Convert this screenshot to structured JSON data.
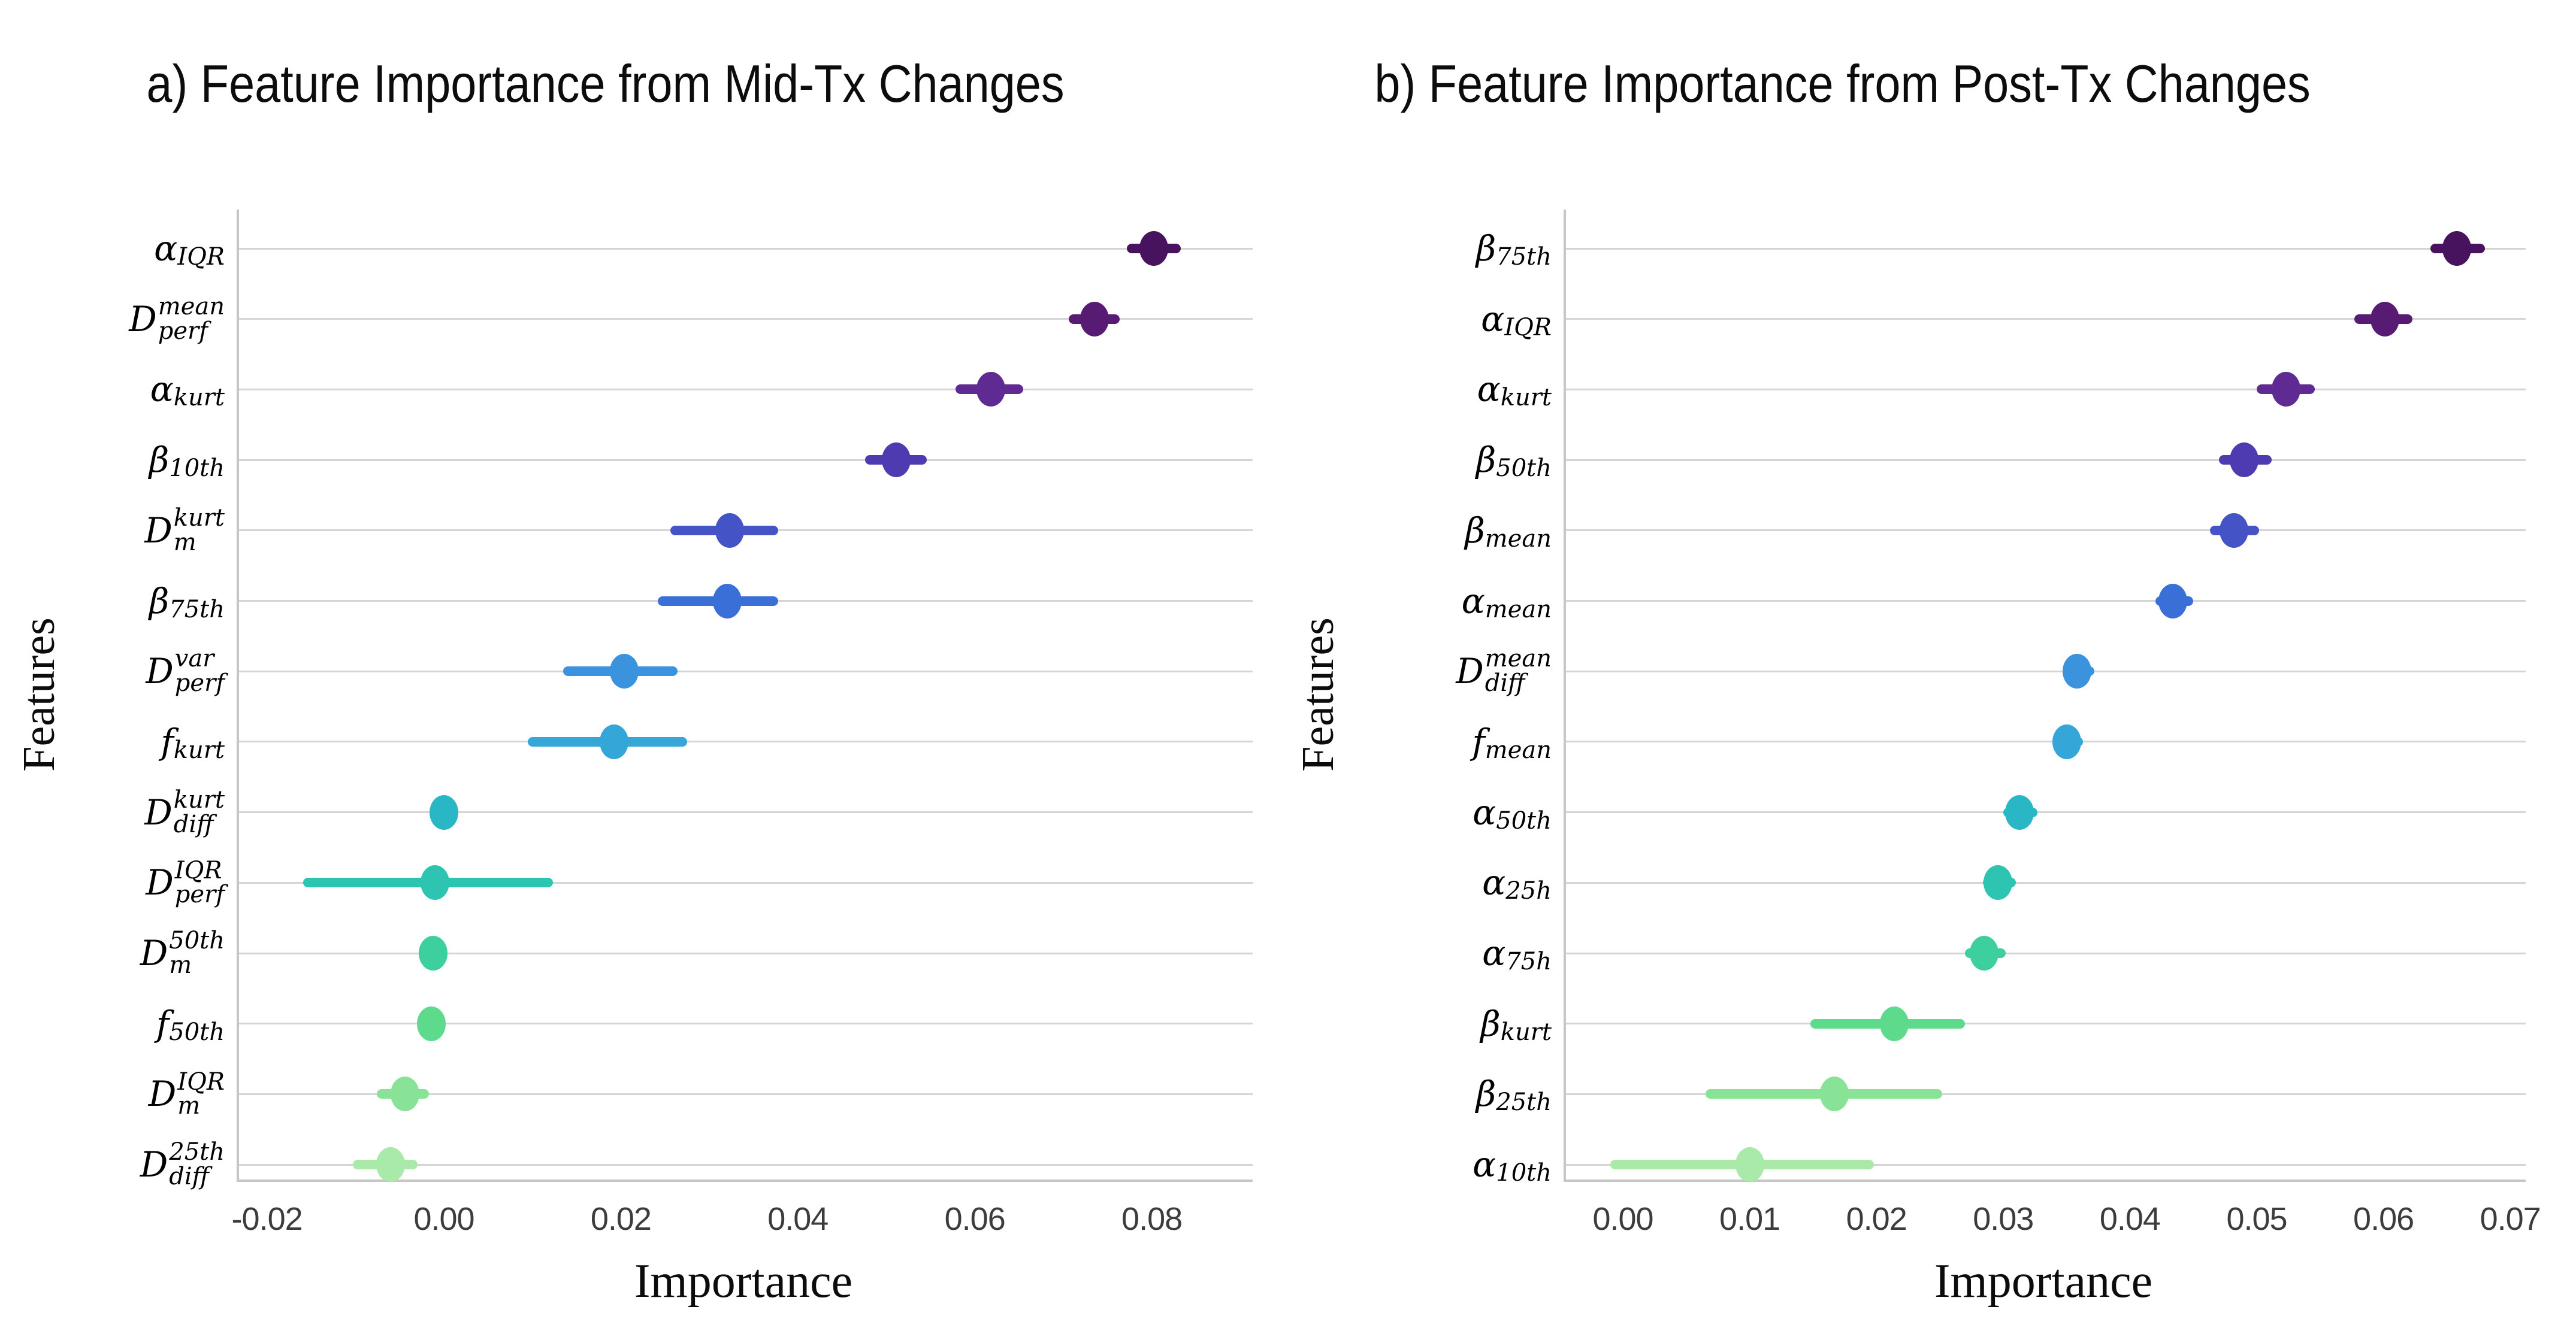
{
  "chart_data": [
    {
      "type": "scatter",
      "title": "a) Feature Importance from Mid-Tx Changes",
      "xlabel": "Importance",
      "ylabel": "Features",
      "legend": "none",
      "grid": "horizontal",
      "xlim": [
        -0.0232,
        0.0914
      ],
      "x_ticks": [
        {
          "label": "-0.02",
          "value": -0.02
        },
        {
          "label": "0.00",
          "value": 0.0
        },
        {
          "label": "0.02",
          "value": 0.02
        },
        {
          "label": "0.04",
          "value": 0.04
        },
        {
          "label": "0.06",
          "value": 0.06
        },
        {
          "label": "0.08",
          "value": 0.08
        }
      ],
      "features": [
        {
          "base": "α",
          "sub": "IQR",
          "value": 0.0802,
          "lo": 0.0772,
          "hi": 0.0833,
          "color": "#47125e"
        },
        {
          "base": "D",
          "sup": "mean",
          "sub": "perf",
          "value": 0.0735,
          "lo": 0.0706,
          "hi": 0.0764,
          "color": "#571b73"
        },
        {
          "base": "α",
          "sub": "kurt",
          "value": 0.0618,
          "lo": 0.0578,
          "hi": 0.0655,
          "color": "#5f2a92"
        },
        {
          "base": "β",
          "sub": "10th",
          "value": 0.0511,
          "lo": 0.0476,
          "hi": 0.0546,
          "color": "#4f3bb1"
        },
        {
          "base": "D",
          "sup": "kurt",
          "sub": "m",
          "value": 0.0323,
          "lo": 0.0256,
          "hi": 0.0378,
          "color": "#4454c6"
        },
        {
          "base": "β",
          "sub": "75th",
          "value": 0.032,
          "lo": 0.0242,
          "hi": 0.0378,
          "color": "#3b6fd8"
        },
        {
          "base": "D",
          "sup": "var",
          "sub": "perf",
          "value": 0.0204,
          "lo": 0.0135,
          "hi": 0.0264,
          "color": "#3b93dd"
        },
        {
          "base": "f",
          "sub": "kurt",
          "value": 0.0192,
          "lo": 0.0095,
          "hi": 0.0275,
          "color": "#34a7d8"
        },
        {
          "base": "D",
          "sup": "kurt",
          "sub": "diff",
          "value": 0.0,
          "lo": -0.0004,
          "hi": 0.0004,
          "color": "#2ab7c5"
        },
        {
          "base": "D",
          "sup": "IQR",
          "sub": "perf",
          "value": -0.001,
          "lo": -0.0159,
          "hi": 0.0123,
          "color": "#2dc4b1"
        },
        {
          "base": "D",
          "sup": "50th",
          "sub": "m",
          "value": -0.0012,
          "lo": -0.0017,
          "hi": -0.0007,
          "color": "#3dcf9d"
        },
        {
          "base": "f",
          "sub": "50th",
          "value": -0.0014,
          "lo": -0.0019,
          "hi": -0.0009,
          "color": "#5eda8c"
        },
        {
          "base": "D",
          "sup": "IQR",
          "sub": "m",
          "value": -0.0044,
          "lo": -0.0076,
          "hi": -0.0017,
          "color": "#89e396"
        },
        {
          "base": "D",
          "sup": "25th",
          "sub": "diff",
          "value": -0.006,
          "lo": -0.0103,
          "hi": -0.003,
          "color": "#a9e9a9"
        }
      ]
    },
    {
      "type": "scatter",
      "title": "b) Feature Importance from Post-Tx Changes",
      "xlabel": "Importance",
      "ylabel": "Features",
      "legend": "none",
      "grid": "horizontal",
      "xlim": [
        -0.0045,
        0.0712
      ],
      "x_ticks": [
        {
          "label": "0.00",
          "value": 0.0
        },
        {
          "label": "0.01",
          "value": 0.01
        },
        {
          "label": "0.02",
          "value": 0.02
        },
        {
          "label": "0.03",
          "value": 0.03
        },
        {
          "label": "0.04",
          "value": 0.04
        },
        {
          "label": "0.05",
          "value": 0.05
        },
        {
          "label": "0.06",
          "value": 0.06
        },
        {
          "label": "0.07",
          "value": 0.07
        }
      ],
      "features": [
        {
          "base": "β",
          "sub": "75th",
          "value": 0.0658,
          "lo": 0.0637,
          "hi": 0.068,
          "color": "#47125e"
        },
        {
          "base": "α",
          "sub": "IQR",
          "value": 0.0601,
          "lo": 0.0577,
          "hi": 0.0623,
          "color": "#571b73"
        },
        {
          "base": "α",
          "sub": "kurt",
          "value": 0.0523,
          "lo": 0.05,
          "hi": 0.0546,
          "color": "#5f2a92"
        },
        {
          "base": "β",
          "sub": "50th",
          "value": 0.049,
          "lo": 0.047,
          "hi": 0.0512,
          "color": "#4f3bb1"
        },
        {
          "base": "β",
          "sub": "mean",
          "value": 0.0482,
          "lo": 0.0463,
          "hi": 0.0502,
          "color": "#4454c6"
        },
        {
          "base": "α",
          "sub": "mean",
          "value": 0.0434,
          "lo": 0.042,
          "hi": 0.045,
          "color": "#3b6fd8"
        },
        {
          "base": "D",
          "sup": "mean",
          "sub": "diff",
          "value": 0.0358,
          "lo": 0.0347,
          "hi": 0.0372,
          "color": "#3b93dd"
        },
        {
          "base": "f",
          "sub": "mean",
          "value": 0.035,
          "lo": 0.034,
          "hi": 0.0363,
          "color": "#34a7d8"
        },
        {
          "base": "α",
          "sub": "50th",
          "value": 0.0313,
          "lo": 0.03,
          "hi": 0.0327,
          "color": "#2ab7c5"
        },
        {
          "base": "α",
          "sub": "25h",
          "value": 0.0296,
          "lo": 0.0284,
          "hi": 0.031,
          "color": "#2dc4b1"
        },
        {
          "base": "α",
          "sub": "75h",
          "value": 0.0285,
          "lo": 0.027,
          "hi": 0.0302,
          "color": "#3dcf9d"
        },
        {
          "base": "β",
          "sub": "kurt",
          "value": 0.0214,
          "lo": 0.0148,
          "hi": 0.027,
          "color": "#5eda8c"
        },
        {
          "base": "β",
          "sub": "25th",
          "value": 0.0167,
          "lo": 0.0065,
          "hi": 0.0252,
          "color": "#89e396"
        },
        {
          "base": "α",
          "sub": "10th",
          "value": 0.01,
          "lo": -0.001,
          "hi": 0.0198,
          "color": "#a9e9a9"
        }
      ]
    }
  ],
  "style": {
    "gridline_color": "#d4d4d4",
    "spine_color": "#c6c6c6",
    "tick_color": "#3c3c3c",
    "background": "#ffffff"
  }
}
